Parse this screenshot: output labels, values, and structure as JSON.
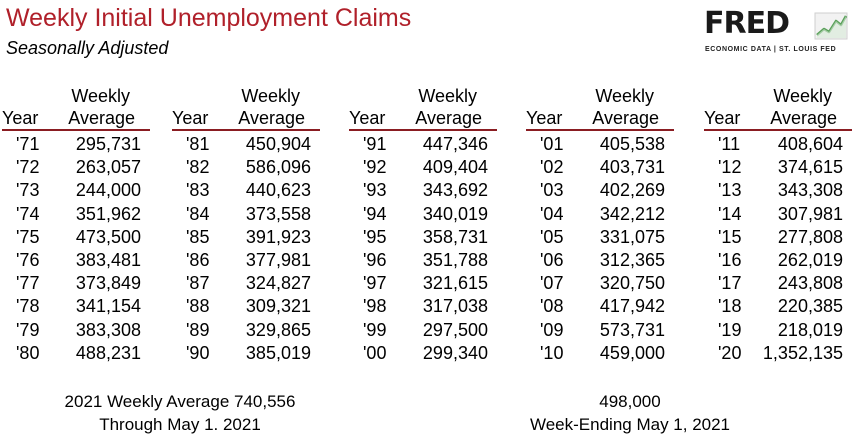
{
  "header": {
    "title": "Weekly Initial Unemployment Claims",
    "subtitle": "Seasonally Adjusted"
  },
  "logo": {
    "wordmark": "FRED",
    "tagline": "ECONOMIC DATA | ST. LOUIS FED",
    "icon": "line-chart-icon"
  },
  "table": {
    "col_year": "Year",
    "col_weekly": "Weekly",
    "col_average": "Average",
    "groups": [
      {
        "rows": [
          {
            "year": "'71",
            "value": "295,731"
          },
          {
            "year": "'72",
            "value": "263,057"
          },
          {
            "year": "'73",
            "value": "244,000"
          },
          {
            "year": "'74",
            "value": "351,962"
          },
          {
            "year": "'75",
            "value": "473,500"
          },
          {
            "year": "'76",
            "value": "383,481"
          },
          {
            "year": "'77",
            "value": "373,849"
          },
          {
            "year": "'78",
            "value": "341,154"
          },
          {
            "year": "'79",
            "value": "383,308"
          },
          {
            "year": "'80",
            "value": "488,231"
          }
        ]
      },
      {
        "rows": [
          {
            "year": "'81",
            "value": "450,904"
          },
          {
            "year": "'82",
            "value": "586,096"
          },
          {
            "year": "'83",
            "value": "440,623"
          },
          {
            "year": "'84",
            "value": "373,558"
          },
          {
            "year": "'85",
            "value": "391,923"
          },
          {
            "year": "'86",
            "value": "377,981"
          },
          {
            "year": "'87",
            "value": "324,827"
          },
          {
            "year": "'88",
            "value": "309,321"
          },
          {
            "year": "'89",
            "value": "329,865"
          },
          {
            "year": "'90",
            "value": "385,019"
          }
        ]
      },
      {
        "rows": [
          {
            "year": "'91",
            "value": "447,346"
          },
          {
            "year": "'92",
            "value": "409,404"
          },
          {
            "year": "'93",
            "value": "343,692"
          },
          {
            "year": "'94",
            "value": "340,019"
          },
          {
            "year": "'95",
            "value": "358,731"
          },
          {
            "year": "'96",
            "value": "351,788"
          },
          {
            "year": "'97",
            "value": "321,615"
          },
          {
            "year": "'98",
            "value": "317,038"
          },
          {
            "year": "'99",
            "value": "297,500"
          },
          {
            "year": "'00",
            "value": "299,340"
          }
        ]
      },
      {
        "rows": [
          {
            "year": "'01",
            "value": "405,538"
          },
          {
            "year": "'02",
            "value": "403,731"
          },
          {
            "year": "'03",
            "value": "402,269"
          },
          {
            "year": "'04",
            "value": "342,212"
          },
          {
            "year": "'05",
            "value": "331,075"
          },
          {
            "year": "'06",
            "value": "312,365"
          },
          {
            "year": "'07",
            "value": "320,750"
          },
          {
            "year": "'08",
            "value": "417,942"
          },
          {
            "year": "'09",
            "value": "573,731"
          },
          {
            "year": "'10",
            "value": "459,000"
          }
        ]
      },
      {
        "rows": [
          {
            "year": "'11",
            "value": "408,604"
          },
          {
            "year": "'12",
            "value": "374,615"
          },
          {
            "year": "'13",
            "value": "343,308"
          },
          {
            "year": "'14",
            "value": "307,981"
          },
          {
            "year": "'15",
            "value": "277,808"
          },
          {
            "year": "'16",
            "value": "262,019"
          },
          {
            "year": "'17",
            "value": "243,808"
          },
          {
            "year": "'18",
            "value": "220,385"
          },
          {
            "year": "'19",
            "value": "218,019"
          },
          {
            "year": "'20",
            "value": "1,352,135"
          }
        ]
      }
    ]
  },
  "footer": {
    "left_line1": "2021 Weekly Average 740,556",
    "left_line2": "Through May 1. 2021",
    "right_line1": "498,000",
    "right_line2": "Week-Ending May 1, 2021"
  },
  "colors": {
    "title": "#b0202a",
    "underline": "#8a1d22"
  }
}
